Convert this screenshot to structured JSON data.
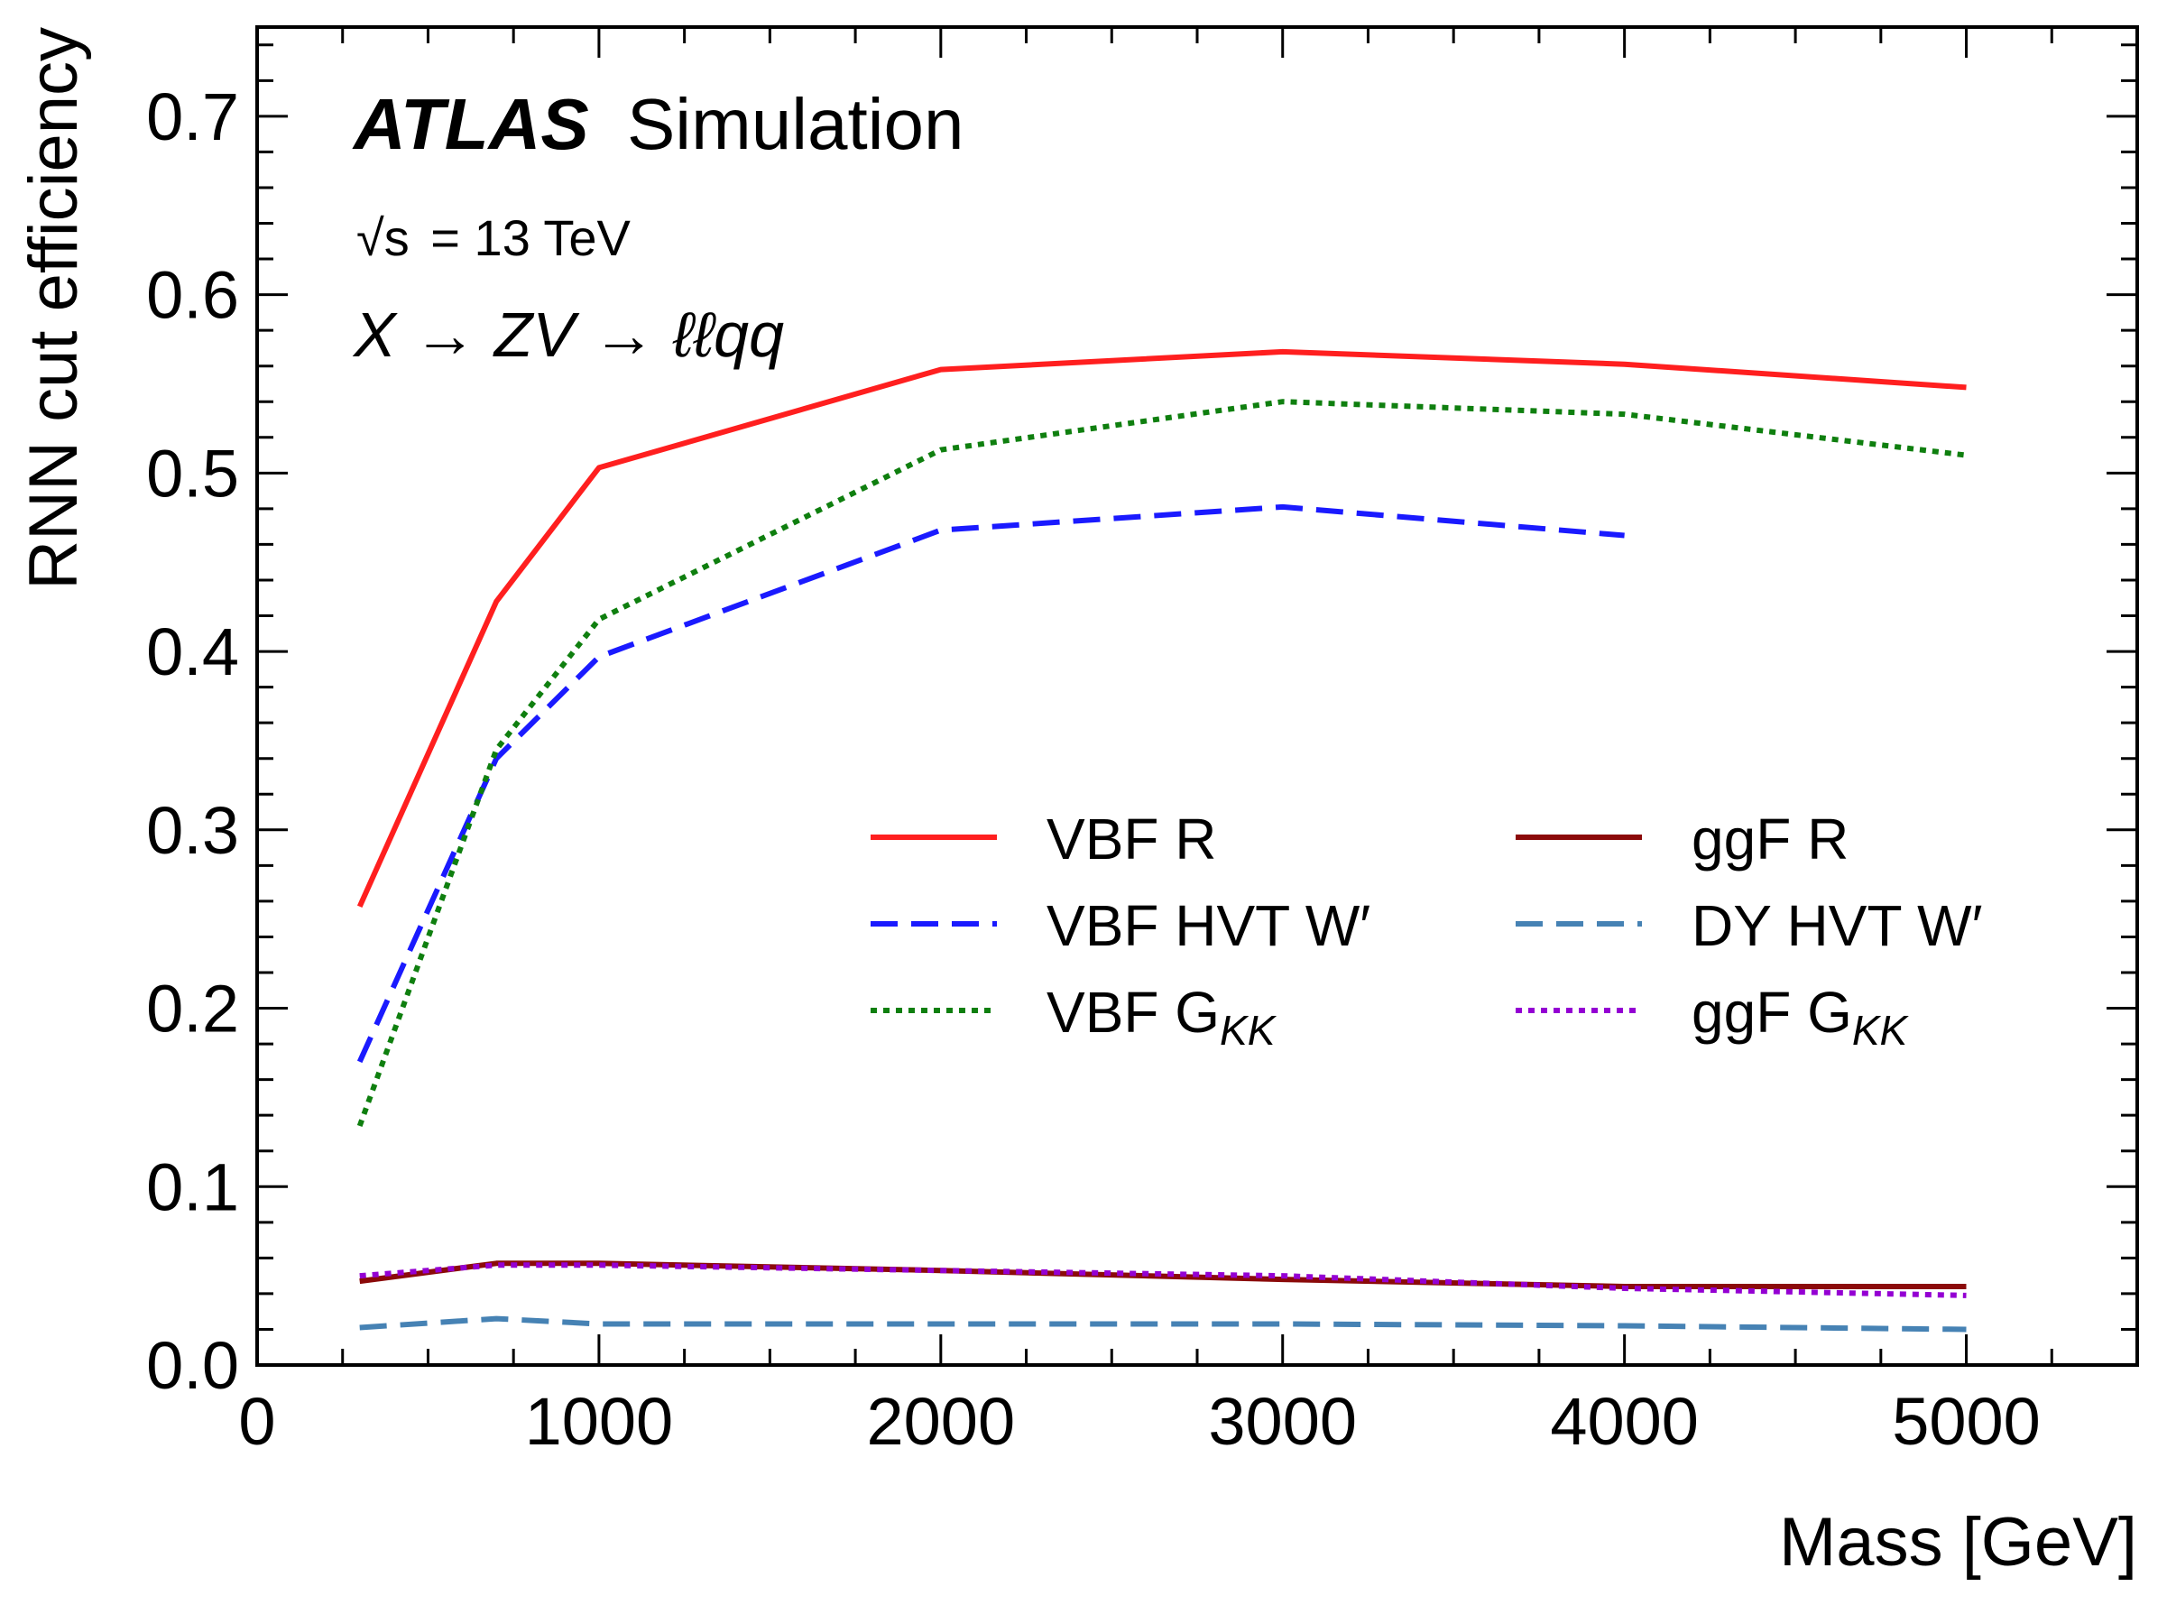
{
  "chart_data": {
    "type": "line",
    "title": "",
    "experiment": "ATLAS",
    "experiment_tag": "Simulation",
    "energy_prefix": "√s",
    "energy_label": "= 13 TeV",
    "process_label": "X → ZV → ℓℓqq",
    "xlabel": "Mass [GeV]",
    "ylabel": "RNN cut efficiency",
    "xlim": [
      0,
      5500
    ],
    "ylim": [
      0.0,
      0.75
    ],
    "xticks": [
      0,
      1000,
      2000,
      3000,
      4000,
      5000
    ],
    "xtick_labels": [
      "0",
      "1000",
      "2000",
      "3000",
      "4000",
      "5000"
    ],
    "yticks": [
      0.0,
      0.1,
      0.2,
      0.3,
      0.4,
      0.5,
      0.6,
      0.7
    ],
    "ytick_labels": [
      "0.0",
      "0.1",
      "0.2",
      "0.3",
      "0.4",
      "0.5",
      "0.6",
      "0.7"
    ],
    "grid": false,
    "legend_placement": "center-right",
    "series": [
      {
        "name": "VBF R",
        "subscript": "",
        "color": "#ff1f1f",
        "dash": "solid",
        "x": [
          300,
          700,
          1000,
          2000,
          3000,
          4000,
          5000
        ],
        "values": [
          0.257,
          0.428,
          0.503,
          0.558,
          0.568,
          0.561,
          0.548
        ]
      },
      {
        "name": "VBF HVT W′",
        "subscript": "",
        "color": "#1a1aff",
        "dash": "dashed",
        "x": [
          300,
          700,
          1000,
          2000,
          3000,
          4000
        ],
        "values": [
          0.17,
          0.34,
          0.397,
          0.468,
          0.481,
          0.465
        ]
      },
      {
        "name": "VBF G",
        "subscript": "KK",
        "color": "#0f7f0f",
        "dash": "dotted",
        "x": [
          300,
          700,
          1000,
          2000,
          3000,
          4000,
          5000
        ],
        "values": [
          0.134,
          0.345,
          0.418,
          0.513,
          0.54,
          0.533,
          0.51
        ]
      },
      {
        "name": "ggF R",
        "subscript": "",
        "color": "#8b0a0a",
        "dash": "solid",
        "x": [
          300,
          700,
          1000,
          2000,
          3000,
          4000,
          5000
        ],
        "values": [
          0.047,
          0.057,
          0.057,
          0.053,
          0.048,
          0.044,
          0.044
        ]
      },
      {
        "name": "DY HVT W′",
        "subscript": "",
        "color": "#4682b4",
        "dash": "dashed",
        "x": [
          300,
          700,
          1000,
          2000,
          3000,
          4000,
          5000
        ],
        "values": [
          0.021,
          0.026,
          0.023,
          0.023,
          0.023,
          0.022,
          0.02
        ]
      },
      {
        "name": "ggF G",
        "subscript": "KK",
        "color": "#9400d3",
        "dash": "dotted",
        "x": [
          300,
          700,
          1000,
          2000,
          3000,
          4000,
          5000
        ],
        "values": [
          0.05,
          0.056,
          0.056,
          0.053,
          0.05,
          0.043,
          0.039
        ]
      }
    ]
  }
}
